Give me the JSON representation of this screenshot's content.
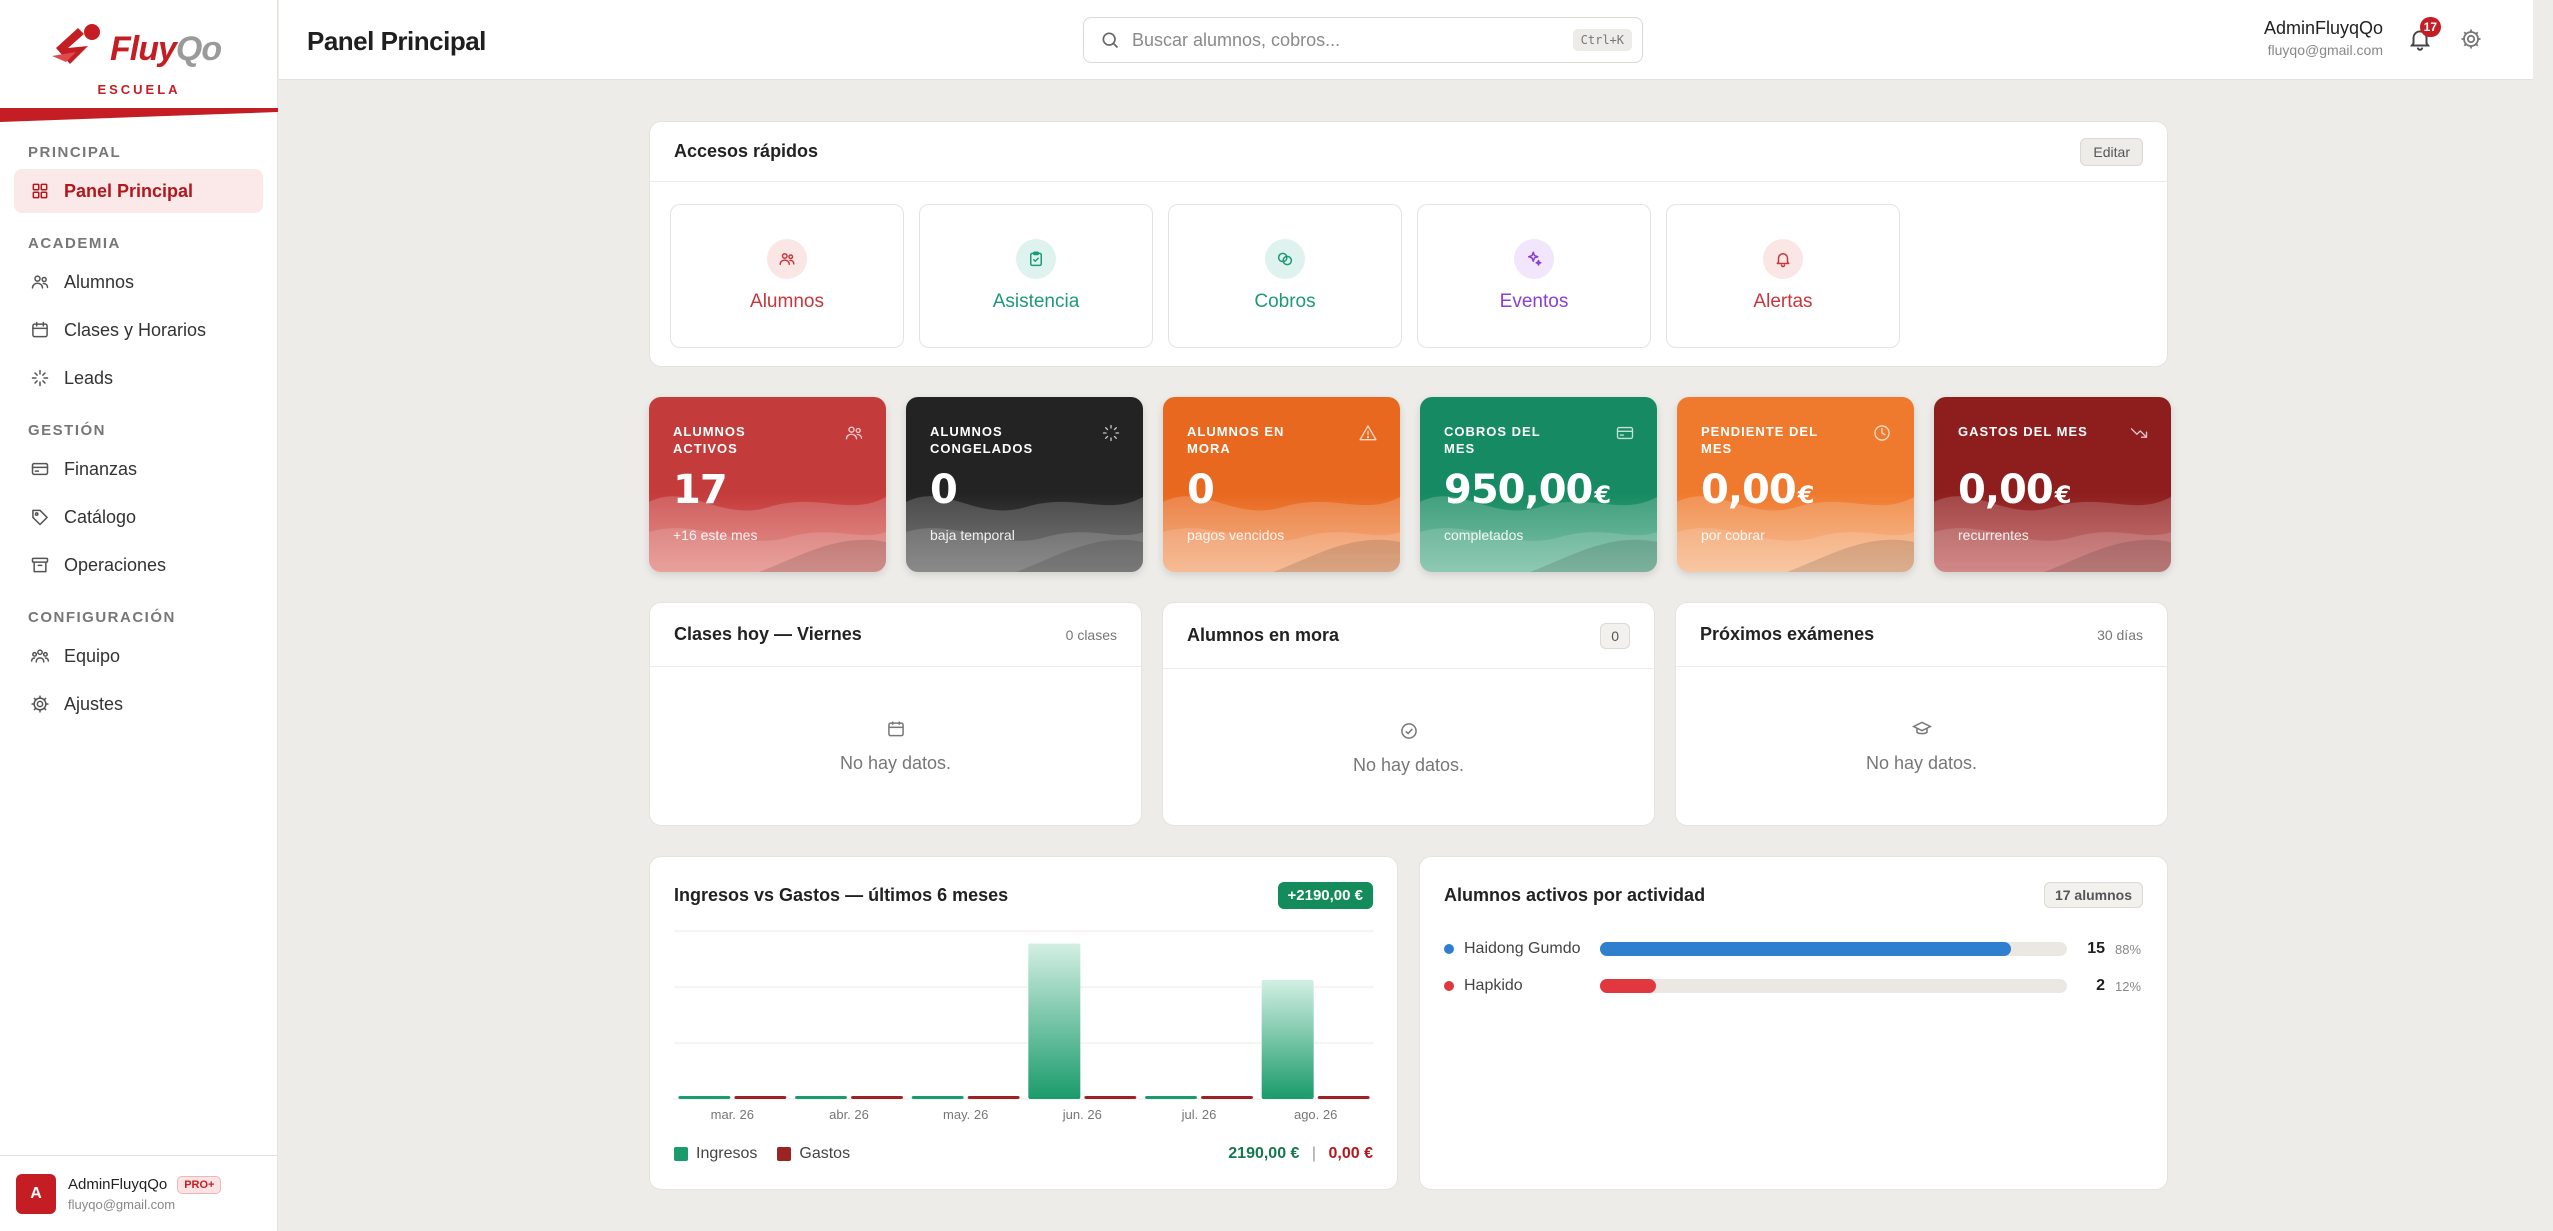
{
  "brand": {
    "name_main": "Fluy",
    "name_accent": "Qo",
    "subtitle": "ESCUELA",
    "color": "#c41e24"
  },
  "sidebar": {
    "sections": [
      {
        "label": "PRINCIPAL",
        "items": [
          {
            "label": "Panel Principal",
            "icon": "dashboard-icon",
            "active": true
          }
        ]
      },
      {
        "label": "ACADEMIA",
        "items": [
          {
            "label": "Alumnos",
            "icon": "users-icon"
          },
          {
            "label": "Clases y Horarios",
            "icon": "calendar-icon"
          },
          {
            "label": "Leads",
            "icon": "sparkle-icon"
          }
        ]
      },
      {
        "label": "GESTIÓN",
        "items": [
          {
            "label": "Finanzas",
            "icon": "credit-card-icon"
          },
          {
            "label": "Catálogo",
            "icon": "tag-icon"
          },
          {
            "label": "Operaciones",
            "icon": "archive-icon"
          }
        ]
      },
      {
        "label": "CONFIGURACIÓN",
        "items": [
          {
            "label": "Equipo",
            "icon": "team-icon"
          },
          {
            "label": "Ajustes",
            "icon": "gear-icon"
          }
        ]
      }
    ],
    "footer": {
      "avatar": "A",
      "name": "AdminFluyqQo",
      "badge": "PRO+",
      "email": "fluyqo@gmail.com"
    }
  },
  "header": {
    "title": "Panel Principal",
    "search_placeholder": "Buscar alumnos, cobros...",
    "search_shortcut": "Ctrl+K",
    "user_name": "AdminFluyqQo",
    "user_email": "fluyqo@gmail.com",
    "notifications": "17"
  },
  "quick_access": {
    "title": "Accesos rápidos",
    "edit_label": "Editar",
    "items": [
      {
        "label": "Alumnos",
        "color": "#c8363c",
        "bg": "#fbe6e6",
        "icon": "users-icon"
      },
      {
        "label": "Asistencia",
        "color": "#1d9a7a",
        "bg": "#dff3ee",
        "icon": "clipboard-check-icon"
      },
      {
        "label": "Cobros",
        "color": "#1d9a7a",
        "bg": "#dff3ee",
        "icon": "coins-icon"
      },
      {
        "label": "Eventos",
        "color": "#8a3fd1",
        "bg": "#f1e6fb",
        "icon": "sparkles-icon"
      },
      {
        "label": "Alertas",
        "color": "#c8363c",
        "bg": "#fbe6e6",
        "icon": "bell-icon"
      }
    ]
  },
  "stats": [
    {
      "label": "ALUMNOS ACTIVOS",
      "value": "17",
      "currency": "",
      "sub": "+16 este mes",
      "icon": "users-icon",
      "c1": "#c43b3b",
      "c2": "#e07a72"
    },
    {
      "label": "ALUMNOS CONGELADOS",
      "value": "0",
      "currency": "",
      "sub": "baja temporal",
      "icon": "loader-icon",
      "c1": "#232323",
      "c2": "#5a5a5a"
    },
    {
      "label": "ALUMNOS EN MORA",
      "value": "0",
      "currency": "",
      "sub": "pagos vencidos",
      "icon": "warning-icon",
      "c1": "#e8681f",
      "c2": "#f3a06a"
    },
    {
      "label": "COBROS DEL MES",
      "value": "950,00",
      "currency": "€",
      "sub": "completados",
      "icon": "credit-card-icon",
      "c1": "#168a62",
      "c2": "#5fb392"
    },
    {
      "label": "PENDIENTE DEL MES",
      "value": "0,00",
      "currency": "€",
      "sub": "por cobrar",
      "icon": "clock-icon",
      "c1": "#ef7a2e",
      "c2": "#f6b07d"
    },
    {
      "label": "GASTOS DEL MES",
      "value": "0,00",
      "currency": "€",
      "sub": "recurrentes",
      "icon": "trending-down-icon",
      "c1": "#8e1e1e",
      "c2": "#bf5757"
    }
  ],
  "panels": {
    "classes": {
      "title": "Clases hoy — Viernes",
      "count": "0 clases",
      "empty": "No hay datos."
    },
    "overdue": {
      "title": "Alumnos en mora",
      "count": "0",
      "empty": "No hay datos."
    },
    "exams": {
      "title": "Próximos exámenes",
      "count": "30 días",
      "empty": "No hay datos."
    }
  },
  "finance": {
    "title": "Ingresos vs Gastos — últimos 6 meses",
    "delta": "+2190,00 €",
    "legend_income": "Ingresos",
    "legend_expense": "Gastos",
    "total_income": "2190,00 €",
    "separator": "|",
    "total_expense": "0,00 €",
    "income_color": "#1a9b6c",
    "expense_color": "#9b2323"
  },
  "chart_data": {
    "type": "bar",
    "categories": [
      "mar. 26",
      "abr. 26",
      "may. 26",
      "jun. 26",
      "jul. 26",
      "ago. 26"
    ],
    "series": [
      {
        "name": "Ingresos",
        "values": [
          0,
          0,
          0,
          1240,
          0,
          950
        ]
      },
      {
        "name": "Gastos",
        "values": [
          0,
          0,
          0,
          0,
          0,
          0
        ]
      }
    ],
    "ylim": [
      0,
      1340
    ],
    "grid": true,
    "legend": "bottom-left"
  },
  "activity": {
    "title": "Alumnos activos por actividad",
    "total": "17 alumnos",
    "items": [
      {
        "name": "Haidong Gumdo",
        "count": "15",
        "pct": "88%",
        "fraction": 0.88,
        "color": "#2f7fcf"
      },
      {
        "name": "Hapkido",
        "count": "2",
        "pct": "12%",
        "fraction": 0.12,
        "color": "#e0383e"
      }
    ]
  }
}
